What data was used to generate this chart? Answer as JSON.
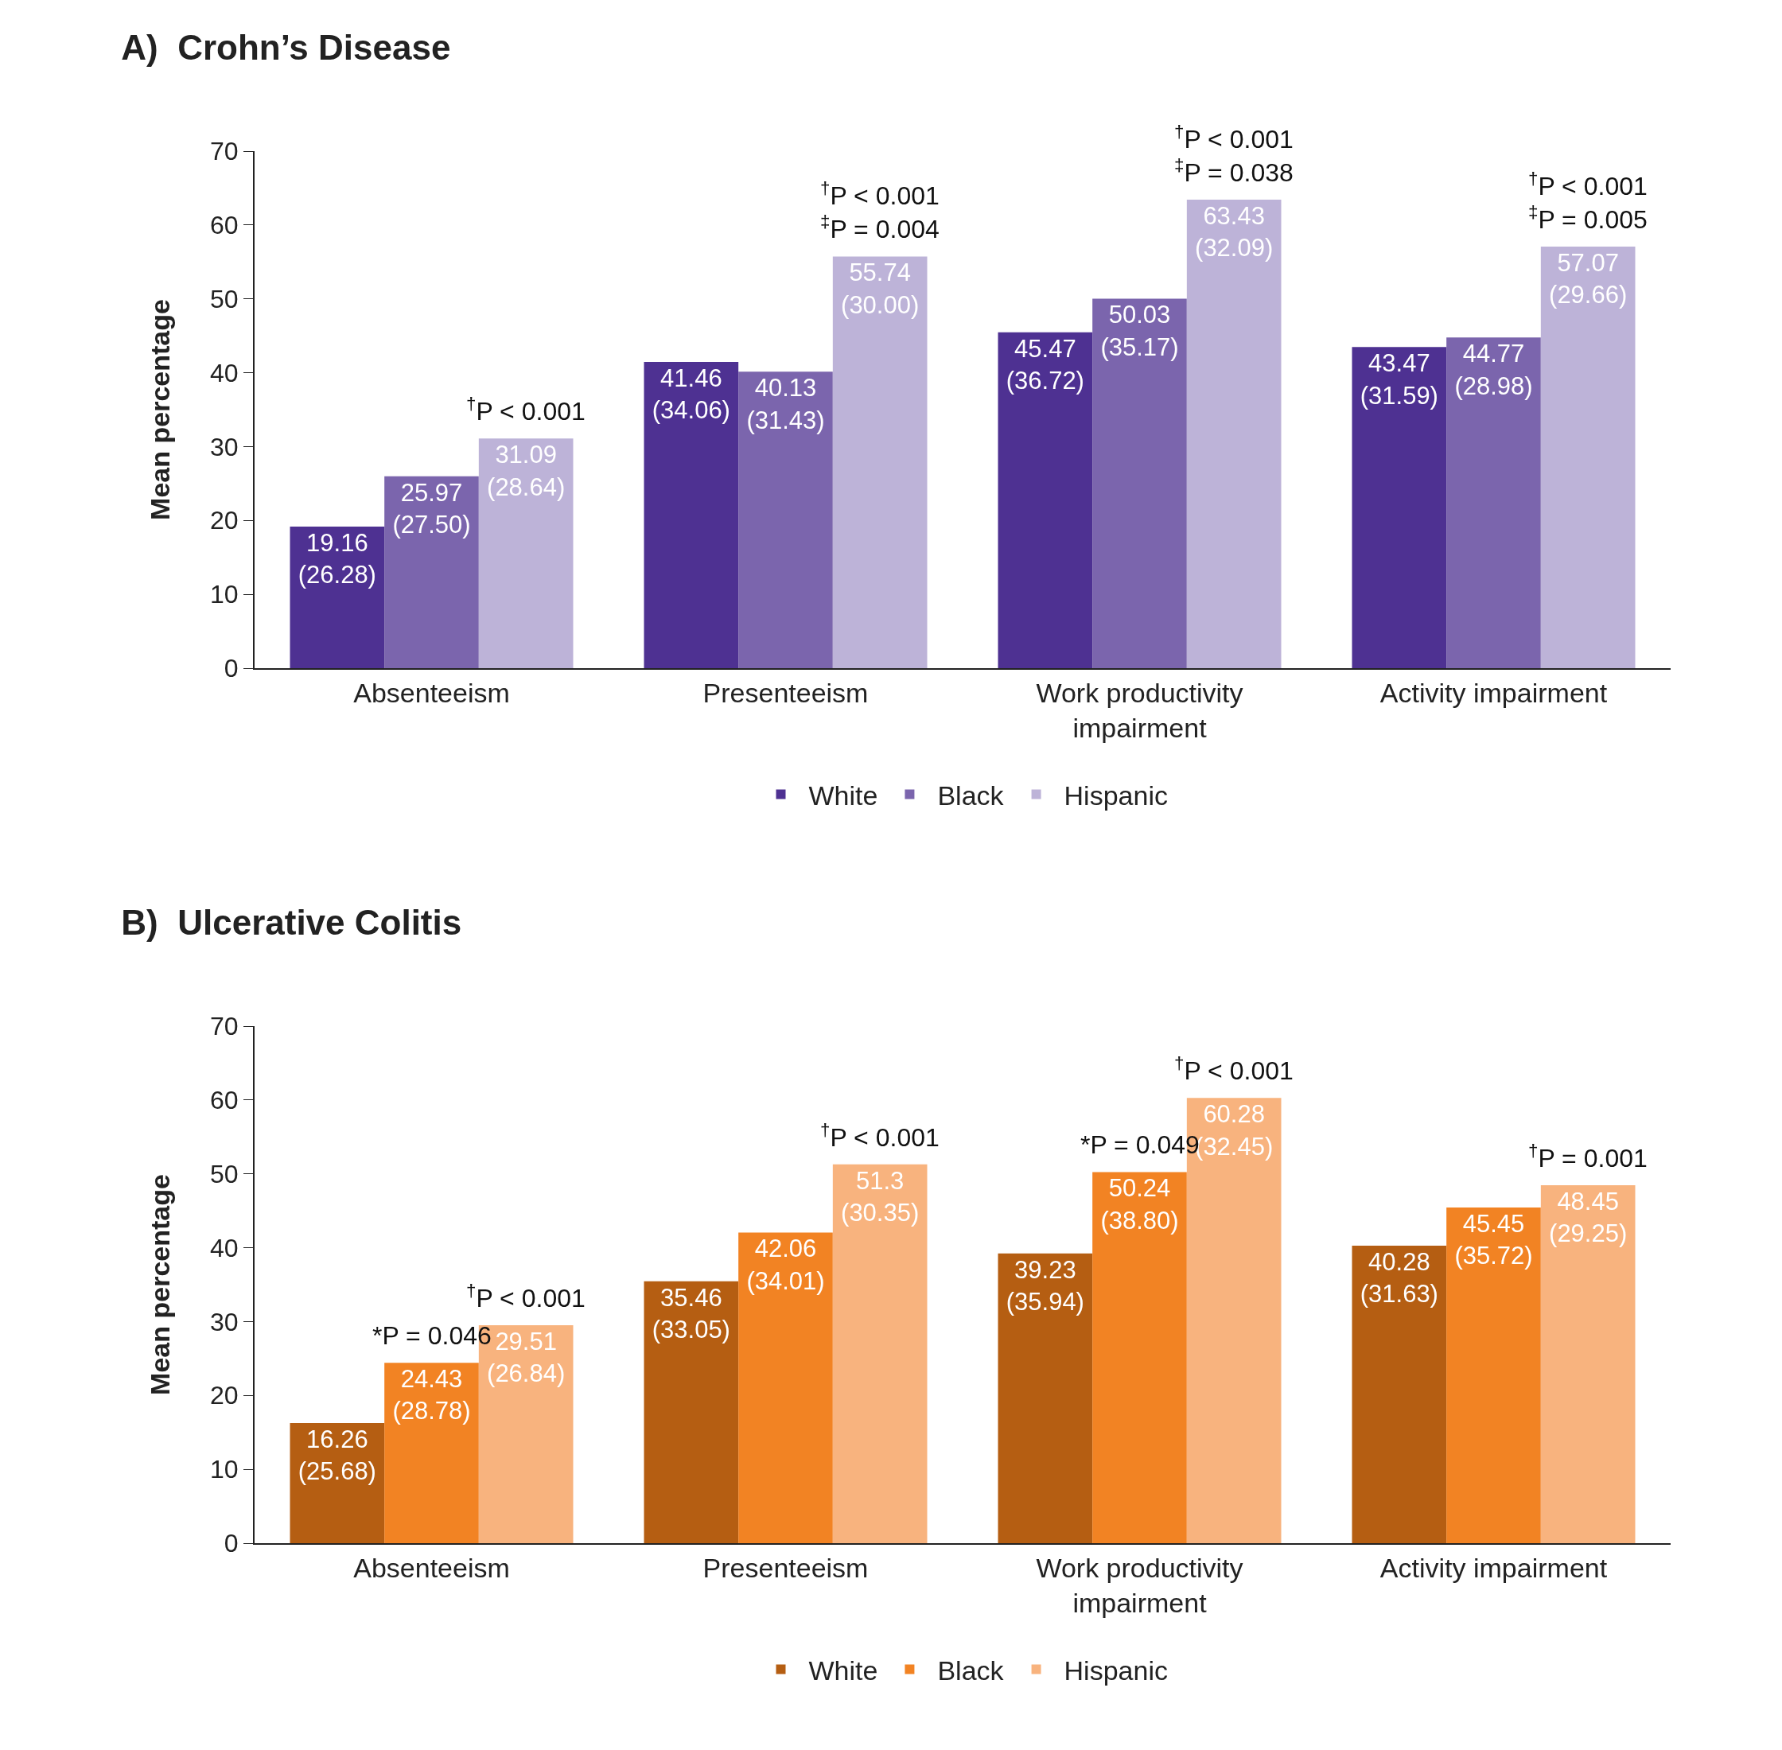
{
  "chart_data": [
    {
      "type": "bar",
      "title": "A)  Crohn’s Disease",
      "ylabel": "Mean percentage",
      "categories": [
        "Absenteeism",
        "Presenteeism",
        "Work productivity\nimpairment",
        "Activity impairment"
      ],
      "series": [
        {
          "name": "White",
          "color": "#4e3192",
          "values": [
            19.16,
            41.46,
            45.47,
            43.47
          ],
          "value_labels": [
            "19.16\n(26.28)",
            "41.46\n(34.06)",
            "45.47\n(36.72)",
            "43.47\n(31.59)"
          ]
        },
        {
          "name": "Black",
          "color": "#7b65ad",
          "values": [
            25.97,
            40.13,
            50.03,
            44.77
          ],
          "value_labels": [
            "25.97\n(27.50)",
            "40.13\n(31.43)",
            "50.03\n(35.17)",
            "44.77\n(28.98)"
          ]
        },
        {
          "name": "Hispanic",
          "color": "#bdb3d8",
          "values": [
            31.09,
            55.74,
            63.43,
            57.07
          ],
          "value_labels": [
            "31.09\n(28.64)",
            "55.74\n(30.00)",
            "63.43\n(32.09)",
            "57.07\n(29.66)"
          ]
        }
      ],
      "ylim": [
        0,
        70
      ],
      "yticks": [
        0,
        10,
        20,
        30,
        40,
        50,
        60,
        70
      ],
      "grid": false,
      "legend": "bottom",
      "annotations": [
        "$^{†}$P < 0.001",
        "$^{†}$P < 0.001\n$^{‡}$P = 0.004",
        "$^{†}$P < 0.001\n$^{‡}$P = 0.038",
        "$^{†}$P < 0.001\n$^{‡}$P = 0.005"
      ]
    },
    {
      "type": "bar",
      "title": "B)  Ulcerative Colitis",
      "ylabel": "Mean percentage",
      "categories": [
        "Absenteeism",
        "Presenteeism",
        "Work productivity\nimpairment",
        "Activity impairment"
      ],
      "series": [
        {
          "name": "White",
          "color": "#b55e12",
          "values": [
            16.26,
            35.46,
            39.23,
            40.28
          ],
          "value_labels": [
            "16.26\n(25.68)",
            "35.46\n(33.05)",
            "39.23\n(35.94)",
            "40.28\n(31.63)"
          ]
        },
        {
          "name": "Black",
          "color": "#f28323",
          "values": [
            24.43,
            42.06,
            50.24,
            45.45
          ],
          "value_labels": [
            "24.43\n(28.78)",
            "42.06\n(34.01)",
            "50.24\n(38.80)",
            "45.45\n(35.72)"
          ]
        },
        {
          "name": "Hispanic",
          "color": "#f8b37e",
          "values": [
            29.51,
            51.3,
            60.28,
            48.45
          ],
          "value_labels": [
            "29.51\n(26.84)",
            "51.3\n(30.35)",
            "60.28\n(32.45)",
            "48.45\n(29.25)"
          ]
        }
      ],
      "ylim": [
        0,
        70
      ],
      "yticks": [
        0,
        10,
        20,
        30,
        40,
        50,
        60,
        70
      ],
      "grid": false,
      "legend": "bottom",
      "annotations": [
        {
          "text": "*P = 0.046",
          "x": "Absenteeism",
          "y": 24.43
        },
        "$^{†}$P < 0.001",
        "$^{†}$P < 0.001",
        {
          "text": "*P = 0.049",
          "x": "Work productivity\nimpairment",
          "y": 50.24
        },
        "$^{†}$P < 0.001",
        "$^{†}$P = 0.001"
      ]
    }
  ]
}
